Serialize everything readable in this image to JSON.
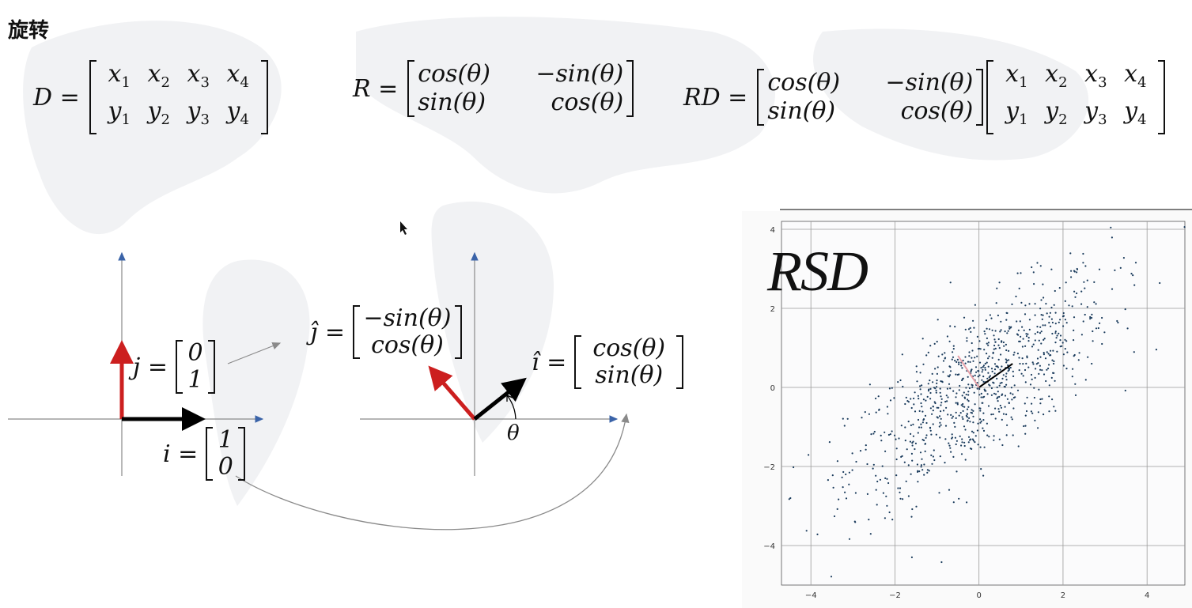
{
  "slide": {
    "title": "旋转"
  },
  "equations": {
    "D": {
      "lhs": "D =",
      "rows": [
        [
          "x1",
          "x2",
          "x3",
          "x4"
        ],
        [
          "y1",
          "y2",
          "y3",
          "y4"
        ]
      ]
    },
    "R": {
      "lhs": "R =",
      "rows": [
        [
          "cos(θ)",
          "−sin(θ)"
        ],
        [
          "sin(θ)",
          "cos(θ)"
        ]
      ]
    },
    "RD": {
      "lhs": "RD =",
      "rot_rows": [
        [
          "cos(θ)",
          "−sin(θ)"
        ],
        [
          "sin(θ)",
          "cos(θ)"
        ]
      ],
      "data_rows": [
        [
          "x1",
          "x2",
          "x3",
          "x4"
        ],
        [
          "y1",
          "y2",
          "y3",
          "y4"
        ]
      ]
    }
  },
  "diagram": {
    "j_label": "j =",
    "j_vec": [
      "0",
      "1"
    ],
    "i_label": "i =",
    "i_vec": [
      "1",
      "0"
    ],
    "jhat_label": "ĵ =",
    "jhat_vec": [
      "−sin(θ)",
      "cos(θ)"
    ],
    "ihat_label": "î =",
    "ihat_vec": [
      "cos(θ)",
      "sin(θ)"
    ],
    "theta": "θ",
    "colors": {
      "axis": "#8a8a8a",
      "axis_arrow": "#3a63a8",
      "j_vector": "#cc1f1f",
      "i_vector": "#000000",
      "connector": "#8a8a8a"
    }
  },
  "chart_data": {
    "type": "scatter",
    "title": "RSD",
    "xlim": [
      -4.7,
      4.9
    ],
    "ylim": [
      -5.0,
      4.2
    ],
    "xticks": [
      -4,
      -2,
      0,
      2,
      4
    ],
    "yticks": [
      4,
      2,
      0,
      -2,
      -4
    ],
    "grid": true,
    "point_count": 900,
    "point_color": "#1a3b5c",
    "distribution": "correlated gaussian cloud centered at (0,0), elongated along positive diagonal",
    "vectors": [
      {
        "name": "black",
        "from": [
          0,
          0
        ],
        "to": [
          0.8,
          0.6
        ],
        "color": "#000000"
      },
      {
        "name": "pink",
        "from": [
          0,
          0
        ],
        "to": [
          -0.5,
          0.8
        ],
        "color": "#e8a0a8"
      }
    ]
  }
}
